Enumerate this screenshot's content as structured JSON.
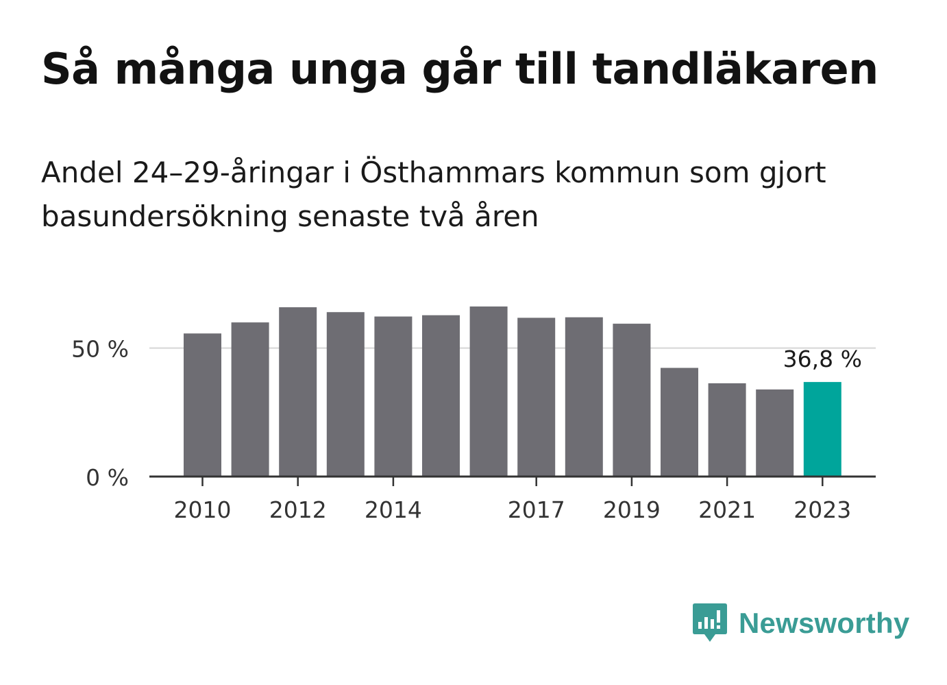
{
  "title": "Så många unga går till tandläkaren",
  "subtitle": "Andel 24–29-åringar i Östhammars kommun som gjort basundersökning senaste två åren",
  "brand": {
    "name": "Newsworthy",
    "logo_icon": "bar-chart-speech-bubble-icon",
    "color": "#3a9c95"
  },
  "chart_data": {
    "type": "bar",
    "categories": [
      "2010",
      "2011",
      "2012",
      "2013",
      "2014",
      "2015",
      "2016",
      "2017",
      "2018",
      "2019",
      "2020",
      "2021",
      "2022",
      "2023"
    ],
    "values": [
      55.7,
      60.0,
      65.9,
      64.0,
      62.3,
      62.8,
      66.2,
      61.8,
      62.0,
      59.5,
      42.3,
      36.3,
      33.9,
      36.8
    ],
    "ylim": [
      0,
      75
    ],
    "yticks": [
      {
        "value": 0,
        "label": "0 %"
      },
      {
        "value": 50,
        "label": "50 %"
      }
    ],
    "xticks": [
      {
        "category": "2010",
        "label": "2010"
      },
      {
        "category": "2012",
        "label": "2012"
      },
      {
        "category": "2014",
        "label": "2014"
      },
      {
        "category": "2017",
        "label": "2017"
      },
      {
        "category": "2019",
        "label": "2019"
      },
      {
        "category": "2021",
        "label": "2021"
      },
      {
        "category": "2023",
        "label": "2023"
      }
    ],
    "highlight": {
      "category": "2023",
      "label": "36,8 %"
    },
    "colors": {
      "bar": "#6e6d73",
      "highlight": "#00a59b",
      "grid": "#dddddd",
      "axis": "#333333"
    },
    "grid": true
  }
}
